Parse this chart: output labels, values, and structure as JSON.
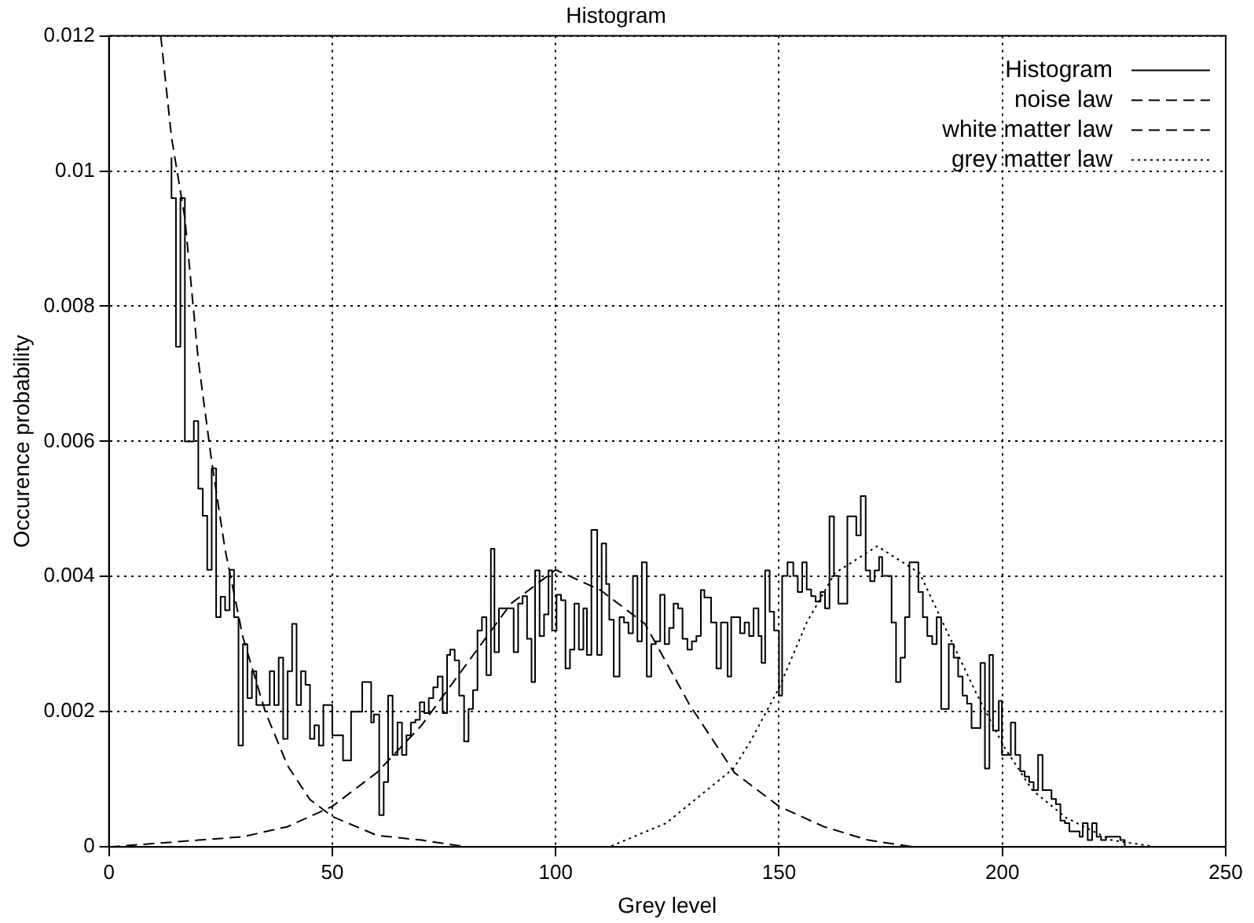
{
  "chart_data": {
    "type": "line",
    "title": "Histogram",
    "xlabel": "Grey level",
    "ylabel": "Occurence probability",
    "xlim": [
      0,
      250
    ],
    "xticks": [
      0,
      50,
      100,
      150,
      200,
      250
    ],
    "ylim": [
      0,
      0.012
    ],
    "yticks": [
      0,
      0.002,
      0.004,
      0.006,
      0.008,
      0.01,
      0.012
    ],
    "grid": true,
    "legend": "top right",
    "marker": "none",
    "series": [
      {
        "name": "Histogram",
        "type": "step",
        "line_style": "solid",
        "color": "#000000",
        "x": [
          14,
          15,
          16,
          17,
          19,
          20,
          21,
          22,
          23,
          24,
          25,
          26,
          27,
          28,
          29,
          30,
          31,
          32,
          33,
          34,
          36,
          37,
          38,
          39,
          40,
          41,
          42,
          43,
          44,
          45,
          46,
          47,
          48,
          50,
          52.4,
          54.2,
          56.7,
          58.7,
          59.3,
          60.5,
          61.5,
          62.5,
          63.5,
          64.6,
          65.6,
          66.6,
          67.6,
          68.6,
          69.6,
          70.6,
          71.6,
          72.6,
          73.6,
          74.7,
          75.7,
          76.4,
          77.4,
          78.4,
          79.5,
          80.5,
          81.5,
          82.5,
          83.5,
          84.5,
          85.5,
          86.3,
          87.3,
          88.3,
          90.6,
          91.6,
          92.6,
          93.6,
          94.6,
          95.4,
          96.4,
          97.4,
          98.4,
          99.2,
          100.2,
          101.2,
          102.2,
          103.2,
          104.2,
          105.2,
          106.2,
          107,
          108,
          109.3,
          110.3,
          111.3,
          112,
          113,
          114.3,
          115.3,
          116.3,
          117.3,
          118.3,
          119.3,
          120.4,
          121.4,
          122.4,
          123.4,
          124.4,
          125.4,
          126.4,
          127.4,
          128.4,
          129.5,
          130.5,
          131.5,
          132.5,
          133.3,
          134.8,
          136,
          137,
          138.5,
          139.3,
          141.3,
          142.3,
          143.3,
          144.3,
          145.4,
          146.1,
          146.9,
          147.9,
          148.9,
          150,
          150.7,
          151.9,
          153.2,
          154.2,
          155.2,
          156.2,
          157.2,
          158.2,
          159.3,
          160.3,
          161.3,
          162.3,
          163.3,
          165.3,
          167.3,
          168.3,
          169.4,
          170.4,
          171.4,
          172.4,
          173.1,
          175.2,
          176.2,
          177.2,
          178.2,
          179.2,
          181.2,
          182.2,
          183.2,
          184.3,
          185.3,
          186.3,
          188,
          189.1,
          190.1,
          191.1,
          192.1,
          193.1,
          195.1,
          196.1,
          197.1,
          197.9,
          199.2,
          199.9,
          201.9,
          202.9,
          204,
          205,
          206,
          207,
          208,
          209,
          211,
          212,
          213,
          214,
          215,
          217.3,
          218,
          219.1,
          220.1,
          221.1,
          222.1,
          223.2,
          226.4,
          227.4,
          228.4
        ],
        "values": [
          0.0102,
          0.0096,
          0.0074,
          0.0096,
          0.006,
          0.0063,
          0.0053,
          0.0049,
          0.0041,
          0.0056,
          0.0034,
          0.0037,
          0.0035,
          0.0041,
          0.0034,
          0.0015,
          0.003,
          0.0022,
          0.0026,
          0.0021,
          0.0021,
          0.0026,
          0.0021,
          0.0028,
          0.0016,
          0.0026,
          0.0033,
          0.0021,
          0.0026,
          0.0024,
          0.0016,
          0.0018,
          0.0015,
          0.0021,
          0.00165,
          0.00128,
          0.002,
          0.00244,
          0.00184,
          0.00196,
          0.00047,
          0.00096,
          0.00224,
          0.00136,
          0.00184,
          0.00136,
          0.00165,
          0.00184,
          0.00188,
          0.00214,
          0.00198,
          0.0022,
          0.00236,
          0.00252,
          0.00198,
          0.00284,
          0.00292,
          0.00276,
          0.00224,
          0.00156,
          0.00204,
          0.00232,
          0.0032,
          0.0034,
          0.00254,
          0.00441,
          0.00288,
          0.00353,
          0.00353,
          0.00288,
          0.0036,
          0.00371,
          0.00308,
          0.00244,
          0.00409,
          0.00312,
          0.00344,
          0.00409,
          0.0032,
          0.00373,
          0.00365,
          0.00264,
          0.00292,
          0.0036,
          0.00292,
          0.00353,
          0.00284,
          0.00469,
          0.00284,
          0.00449,
          0.00389,
          0.00336,
          0.00252,
          0.0034,
          0.00332,
          0.00316,
          0.00401,
          0.00304,
          0.00421,
          0.00252,
          0.003,
          0.00304,
          0.00373,
          0.003,
          0.00324,
          0.0036,
          0.00353,
          0.00308,
          0.00292,
          0.00304,
          0.00312,
          0.0038,
          0.00369,
          0.00332,
          0.00264,
          0.00332,
          0.00252,
          0.0034,
          0.00316,
          0.00332,
          0.00312,
          0.00353,
          0.00312,
          0.00272,
          0.00409,
          0.00348,
          0.0032,
          0.00224,
          0.00401,
          0.00421,
          0.00401,
          0.00377,
          0.00421,
          0.00381,
          0.00371,
          0.00363,
          0.00377,
          0.00353,
          0.00489,
          0.00401,
          0.0036,
          0.00489,
          0.00461,
          0.00519,
          0.00409,
          0.00393,
          0.00409,
          0.00429,
          0.00401,
          0.00332,
          0.00244,
          0.0028,
          0.0034,
          0.00421,
          0.00377,
          0.0034,
          0.00312,
          0.003,
          0.0034,
          0.00204,
          0.003,
          0.0028,
          0.00252,
          0.00224,
          0.00212,
          0.00176,
          0.00272,
          0.00116,
          0.00284,
          0.00172,
          0.00216,
          0.00136,
          0.00184,
          0.00136,
          0.00112,
          0.00104,
          0.00096,
          0.00084,
          0.00136,
          0.00084,
          0.00071,
          0.00063,
          0.00039,
          0.00035,
          0.00023,
          0.00015,
          0.00035,
          0.0001,
          0.00035,
          0.00015,
          0.0001,
          0.00015,
          0.0001,
          0
        ]
      },
      {
        "name": "noise law",
        "type": "line",
        "line_style": "dashed",
        "color": "#000000",
        "x": [
          11.6,
          14,
          17,
          20,
          23,
          26,
          30,
          35,
          40,
          45,
          50,
          60,
          70,
          80
        ],
        "values": [
          0.012,
          0.0105,
          0.0093,
          0.0072,
          0.0057,
          0.0044,
          0.0031,
          0.002,
          0.0012,
          0.0007,
          0.00045,
          0.00017,
          0.0001,
          0
        ]
      },
      {
        "name": "white matter law",
        "type": "line",
        "line_style": "dashed",
        "color": "#000000",
        "x": [
          0,
          20,
          30,
          40,
          50,
          60,
          70,
          80,
          90,
          100,
          110,
          120,
          130,
          140,
          150,
          160,
          170,
          180,
          190
        ],
        "values": [
          0,
          0.0001,
          0.00015,
          0.0003,
          0.0006,
          0.0011,
          0.0018,
          0.0027,
          0.0036,
          0.0041,
          0.0038,
          0.0033,
          0.0021,
          0.0011,
          0.0006,
          0.0003,
          0.0001,
          0,
          0
        ]
      },
      {
        "name": "grey matter law",
        "type": "line",
        "line_style": "dotted",
        "color": "#000000",
        "x": [
          90,
          100,
          112,
          124.7,
          139.8,
          143.6,
          150,
          156.2,
          162.5,
          172,
          181.5,
          187.8,
          194.1,
          200.4,
          206.7,
          214.3,
          224.4,
          234.5
        ],
        "values": [
          0,
          0,
          0,
          0.00035,
          0.00116,
          0.00156,
          0.00235,
          0.00332,
          0.00405,
          0.00445,
          0.00405,
          0.00316,
          0.00228,
          0.00148,
          0.00084,
          0.00043,
          0.0001,
          0
        ]
      }
    ]
  }
}
